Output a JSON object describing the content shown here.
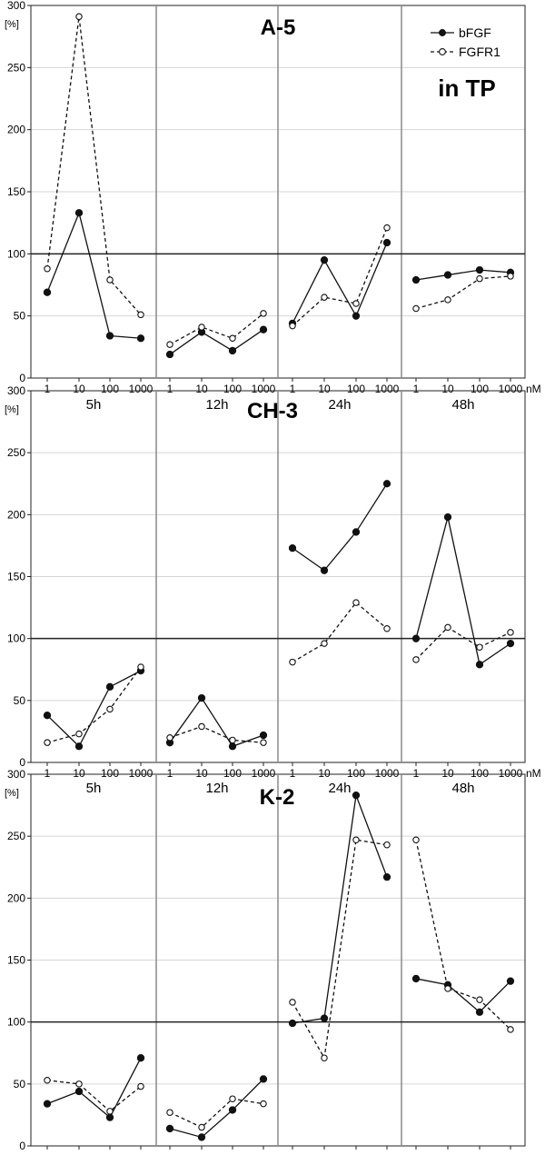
{
  "chart_data": {
    "type": "line",
    "title": "",
    "y_axis_label": "[%]",
    "x_unit": "nM",
    "concentrations": [
      "1",
      "10",
      "100",
      "1000"
    ],
    "time_points": [
      "5h",
      "12h",
      "24h",
      "48h"
    ],
    "ylim": [
      0,
      300
    ],
    "yticks": [
      0,
      50,
      100,
      150,
      200,
      250,
      300
    ],
    "reference_line": 100,
    "grid": true,
    "legend": {
      "position": "top-right",
      "entries": [
        {
          "name": "bFGF",
          "line": "solid",
          "marker": "filled-circle"
        },
        {
          "name": "FGFR1",
          "line": "dashed",
          "marker": "open-circle"
        }
      ]
    },
    "badge": "in TP",
    "panels": [
      {
        "title": "A-5",
        "series": [
          {
            "name": "bFGF",
            "values": [
              [
                69,
                133,
                34,
                32
              ],
              [
                19,
                37,
                22,
                39
              ],
              [
                44,
                95,
                50,
                109
              ],
              [
                79,
                83,
                87,
                85
              ]
            ]
          },
          {
            "name": "FGFR1",
            "values": [
              [
                88,
                291,
                79,
                51
              ],
              [
                27,
                41,
                32,
                52
              ],
              [
                42,
                65,
                60,
                121
              ],
              [
                56,
                63,
                80,
                82
              ]
            ]
          }
        ]
      },
      {
        "title": "CH-3",
        "series": [
          {
            "name": "bFGF",
            "values": [
              [
                38,
                13,
                61,
                74
              ],
              [
                16,
                52,
                13,
                22
              ],
              [
                173,
                155,
                186,
                225
              ],
              [
                100,
                198,
                79,
                96
              ]
            ]
          },
          {
            "name": "FGFR1",
            "values": [
              [
                16,
                23,
                43,
                77
              ],
              [
                20,
                29,
                18,
                16
              ],
              [
                81,
                96,
                129,
                108
              ],
              [
                83,
                109,
                93,
                105
              ]
            ]
          }
        ]
      },
      {
        "title": "K-2",
        "series": [
          {
            "name": "bFGF",
            "values": [
              [
                34,
                44,
                23,
                71
              ],
              [
                14,
                7,
                29,
                54
              ],
              [
                99,
                103,
                283,
                217
              ],
              [
                135,
                130,
                108,
                133
              ]
            ]
          },
          {
            "name": "FGFR1",
            "values": [
              [
                53,
                50,
                28,
                48
              ],
              [
                27,
                15,
                38,
                34
              ],
              [
                116,
                71,
                247,
                243
              ],
              [
                247,
                127,
                118,
                94
              ]
            ]
          }
        ]
      }
    ]
  }
}
